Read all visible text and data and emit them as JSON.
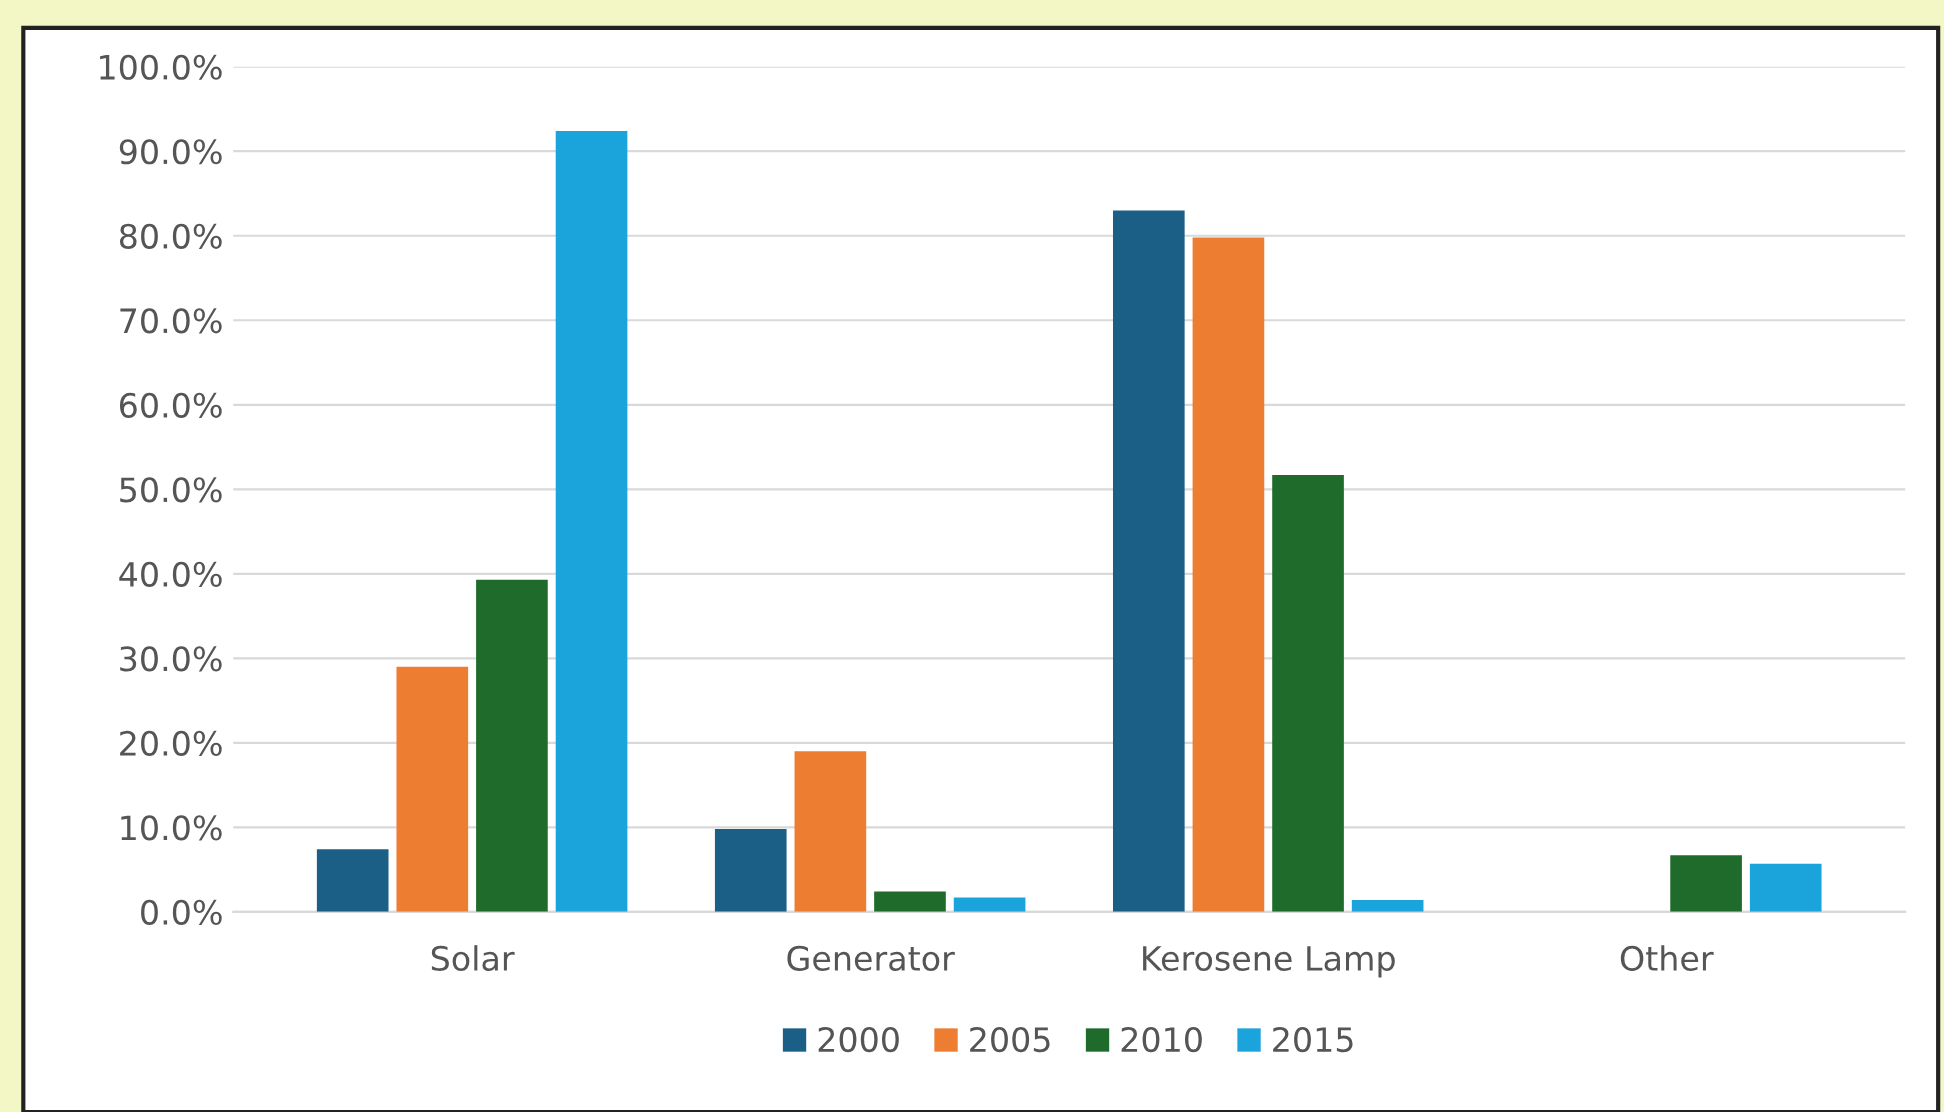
{
  "chart_data": {
    "type": "bar",
    "categories": [
      "Solar",
      "Generator",
      "Kerosene Lamp",
      "Other"
    ],
    "series": [
      {
        "name": "2000",
        "color": "#1b5f86",
        "values": [
          7.4,
          9.8,
          83.0,
          null
        ]
      },
      {
        "name": "2005",
        "color": "#ed7d31",
        "values": [
          29.0,
          19.0,
          79.8,
          null
        ]
      },
      {
        "name": "2010",
        "color": "#1f6b2b",
        "values": [
          39.3,
          2.4,
          51.7,
          6.7
        ]
      },
      {
        "name": "2015",
        "color": "#1ba3dc",
        "values": [
          92.4,
          1.7,
          1.4,
          5.7
        ]
      }
    ],
    "ylim": [
      0,
      100
    ],
    "yticks": [
      {
        "value": 0,
        "label": "0.0%"
      },
      {
        "value": 10,
        "label": "10.0%"
      },
      {
        "value": 20,
        "label": "20.0%"
      },
      {
        "value": 30,
        "label": "30.0%"
      },
      {
        "value": 40,
        "label": "40.0%"
      },
      {
        "value": 50,
        "label": "50.0%"
      },
      {
        "value": 60,
        "label": "60.0%"
      },
      {
        "value": 70,
        "label": "70.0%"
      },
      {
        "value": 80,
        "label": "80.0%"
      },
      {
        "value": 90,
        "label": "90.0%"
      },
      {
        "value": 100,
        "label": "100.0%"
      }
    ],
    "grid": "y",
    "legend": "bottom"
  }
}
